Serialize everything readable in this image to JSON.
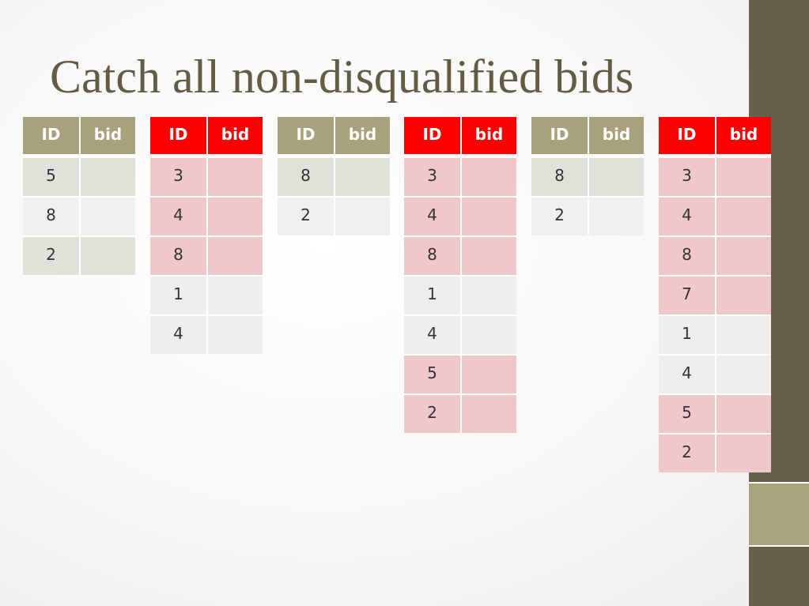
{
  "slide": {
    "title": "Catch all non-disqualified bids"
  },
  "tables": [
    {
      "id_header": "ID",
      "bid_header": "bid",
      "style": "olive",
      "header_color": "#a7a27b",
      "rows": [
        {
          "id": "5",
          "bid": ""
        },
        {
          "id": "8",
          "bid": ""
        },
        {
          "id": "2",
          "bid": ""
        }
      ]
    },
    {
      "id_header": "ID",
      "bid_header": "bid",
      "style": "red",
      "header_color": "#fc0000",
      "rows": [
        {
          "id": "3",
          "bid": ""
        },
        {
          "id": "4",
          "bid": ""
        },
        {
          "id": "8",
          "bid": ""
        },
        {
          "id": "1",
          "bid": ""
        },
        {
          "id": "4",
          "bid": ""
        }
      ]
    },
    {
      "id_header": "ID",
      "bid_header": "bid",
      "style": "olive",
      "header_color": "#a7a27b",
      "rows": [
        {
          "id": "8",
          "bid": ""
        },
        {
          "id": "2",
          "bid": ""
        }
      ]
    },
    {
      "id_header": "ID",
      "bid_header": "bid",
      "style": "red",
      "header_color": "#fc0000",
      "rows": [
        {
          "id": "3",
          "bid": ""
        },
        {
          "id": "4",
          "bid": ""
        },
        {
          "id": "8",
          "bid": ""
        },
        {
          "id": "1",
          "bid": ""
        },
        {
          "id": "4",
          "bid": ""
        },
        {
          "id": "5",
          "bid": ""
        },
        {
          "id": "2",
          "bid": ""
        }
      ]
    },
    {
      "id_header": "ID",
      "bid_header": "bid",
      "style": "olive",
      "header_color": "#a7a27b",
      "rows": [
        {
          "id": "8",
          "bid": ""
        },
        {
          "id": "2",
          "bid": ""
        }
      ]
    },
    {
      "id_header": "ID",
      "bid_header": "bid",
      "style": "red",
      "header_color": "#fc0000",
      "rows": [
        {
          "id": "3",
          "bid": ""
        },
        {
          "id": "4",
          "bid": ""
        },
        {
          "id": "8",
          "bid": ""
        },
        {
          "id": "7",
          "bid": ""
        },
        {
          "id": "1",
          "bid": ""
        },
        {
          "id": "4",
          "bid": ""
        },
        {
          "id": "5",
          "bid": ""
        },
        {
          "id": "2",
          "bid": ""
        }
      ]
    }
  ]
}
